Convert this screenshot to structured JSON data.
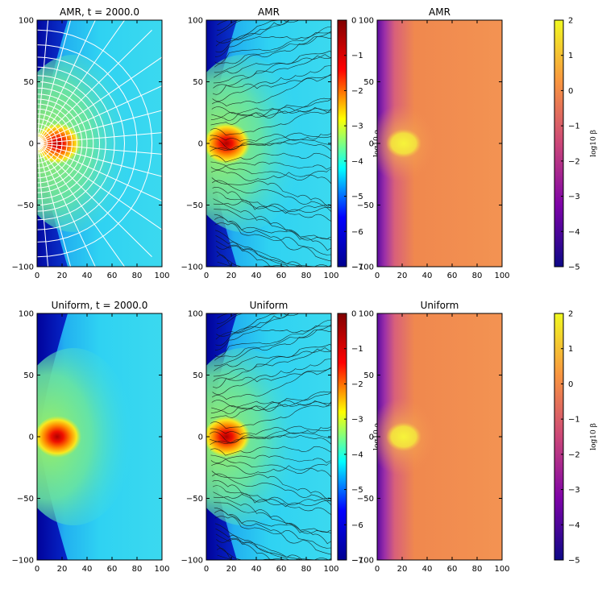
{
  "chart_data": [
    {
      "type": "heatmap",
      "title": "AMR, t = 2000.0",
      "quantity": "log10 rho",
      "cmap": "jet",
      "xlim": [
        0,
        100
      ],
      "ylim": [
        -100,
        100
      ],
      "xticks": [
        "0",
        "20",
        "40",
        "60",
        "80",
        "100"
      ],
      "yticks": [
        "100",
        "50",
        "0",
        "−50",
        "−100"
      ],
      "overlay": "white spherical AMR grid (radial lines and concentric arcs)"
    },
    {
      "type": "heatmap",
      "title": "AMR",
      "quantity": "log10 rho",
      "cmap": "jet",
      "xlim": [
        0,
        100
      ],
      "ylim": [
        -100,
        100
      ],
      "xticks": [
        "0",
        "20",
        "40",
        "60",
        "80",
        "100"
      ],
      "yticks": [
        "100",
        "50",
        "0",
        "−50",
        "−100"
      ],
      "overlay": "black magnetic field streamlines",
      "colorbar": {
        "label": "log10 ρ",
        "range": [
          -7,
          0
        ],
        "ticks": [
          "0",
          "−1",
          "−2",
          "−3",
          "−4",
          "−5",
          "−6",
          "−7"
        ]
      }
    },
    {
      "type": "heatmap",
      "title": "AMR",
      "quantity": "log10 beta",
      "cmap": "plasma",
      "xlim": [
        0,
        100
      ],
      "ylim": [
        -100,
        100
      ],
      "xticks": [
        "0",
        "20",
        "40",
        "60",
        "80",
        "100"
      ],
      "yticks": [
        "100",
        "50",
        "0",
        "−50",
        "−100"
      ],
      "colorbar": {
        "label": "log10 β",
        "range": [
          -5,
          2
        ],
        "ticks": [
          "2",
          "1",
          "0",
          "−1",
          "−2",
          "−3",
          "−4",
          "−5"
        ]
      }
    },
    {
      "type": "heatmap",
      "title": "Uniform, t = 2000.0",
      "quantity": "log10 rho",
      "cmap": "jet",
      "xlim": [
        0,
        100
      ],
      "ylim": [
        -100,
        100
      ],
      "xticks": [
        "0",
        "20",
        "40",
        "60",
        "80",
        "100"
      ],
      "yticks": [
        "100",
        "50",
        "0",
        "−50",
        "−100"
      ]
    },
    {
      "type": "heatmap",
      "title": "Uniform",
      "quantity": "log10 rho",
      "cmap": "jet",
      "xlim": [
        0,
        100
      ],
      "ylim": [
        -100,
        100
      ],
      "xticks": [
        "0",
        "20",
        "40",
        "60",
        "80",
        "100"
      ],
      "yticks": [
        "100",
        "50",
        "0",
        "−50",
        "−100"
      ],
      "overlay": "black magnetic field streamlines",
      "colorbar": {
        "label": "log10 ρ",
        "range": [
          -7,
          0
        ],
        "ticks": [
          "0",
          "−1",
          "−2",
          "−3",
          "−4",
          "−5",
          "−6",
          "−7"
        ]
      }
    },
    {
      "type": "heatmap",
      "title": "Uniform",
      "quantity": "log10 beta",
      "cmap": "plasma",
      "xlim": [
        0,
        100
      ],
      "ylim": [
        -100,
        100
      ],
      "xticks": [
        "0",
        "20",
        "40",
        "60",
        "80",
        "100"
      ],
      "yticks": [
        "100",
        "50",
        "0",
        "−50",
        "−100"
      ],
      "colorbar": {
        "label": "log10 β",
        "range": [
          -5,
          2
        ],
        "ticks": [
          "2",
          "1",
          "0",
          "−1",
          "−2",
          "−3",
          "−4",
          "−5"
        ]
      }
    }
  ],
  "colors": {
    "jet": [
      "#00008f",
      "#0000ff",
      "#00ffff",
      "#ffff00",
      "#ff0000",
      "#800000"
    ],
    "plasma": [
      "#0d0887",
      "#7e03a8",
      "#cc4778",
      "#f89540",
      "#f0f921"
    ]
  }
}
